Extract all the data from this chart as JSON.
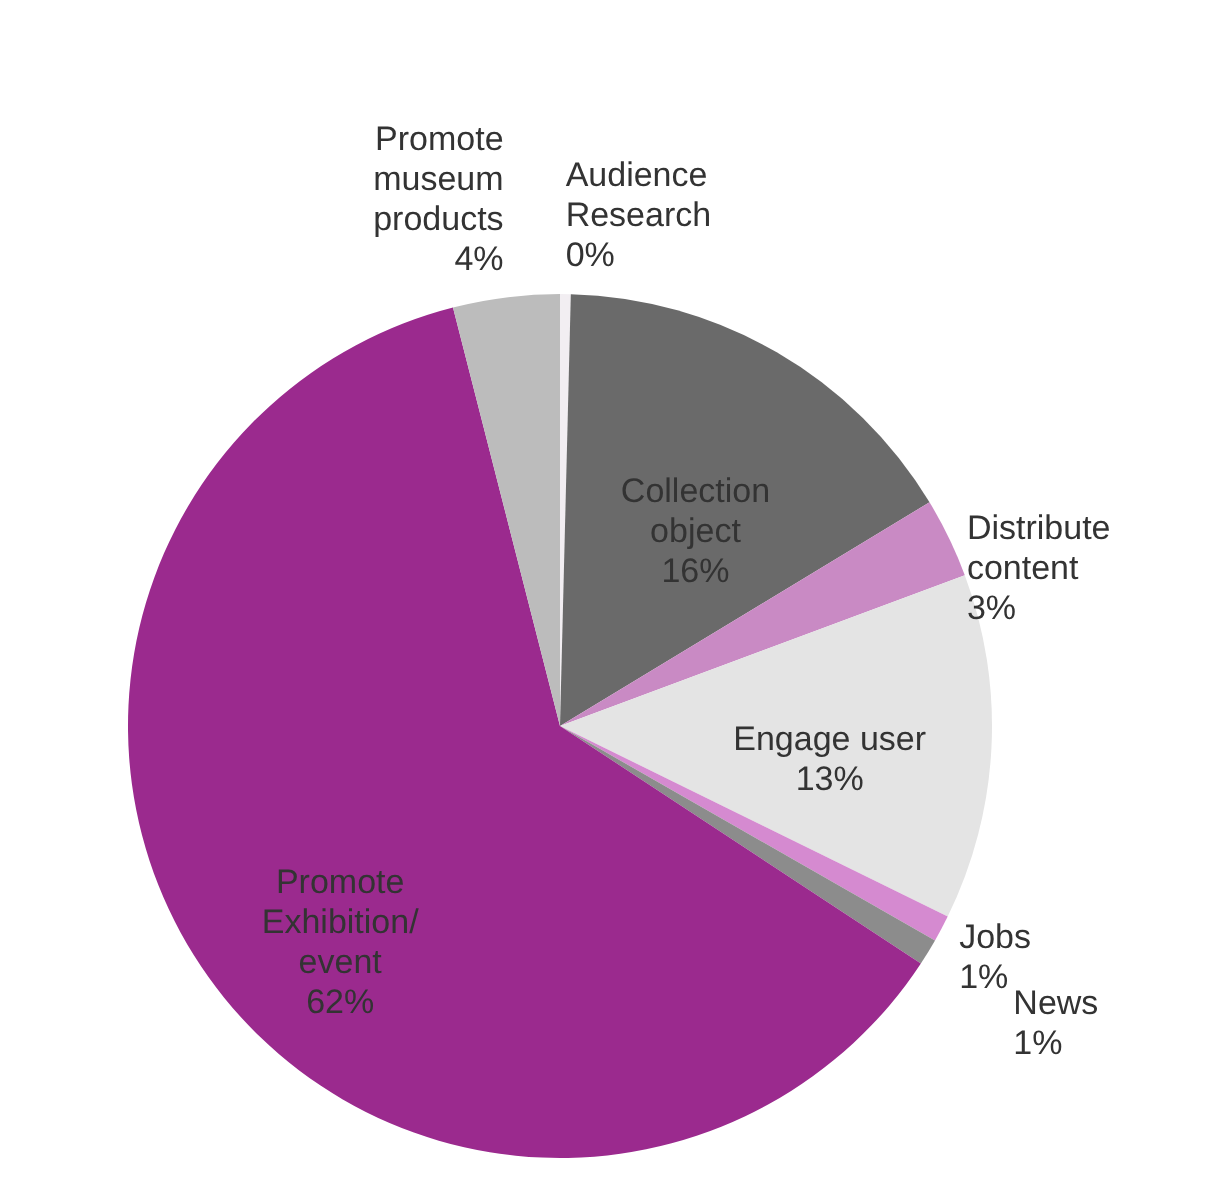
{
  "chart_data": {
    "type": "pie",
    "categories": [
      "Audience Research",
      "Collection object",
      "Distribute content",
      "Engage user",
      "Jobs",
      "News",
      "Promote Exhibition/ event",
      "Promote museum products"
    ],
    "values": [
      0.4,
      16,
      3,
      13,
      1,
      1,
      62,
      4
    ],
    "value_labels": [
      "0%",
      "16%",
      "3%",
      "13%",
      "1%",
      "1%",
      "62%",
      "4%"
    ],
    "colors": [
      "#f2eef2",
      "#6a6a6a",
      "#c98ac4",
      "#e4e4e4",
      "#d58ad0",
      "#8c8c8c",
      "#9b2a8e",
      "#bcbcbc"
    ]
  }
}
